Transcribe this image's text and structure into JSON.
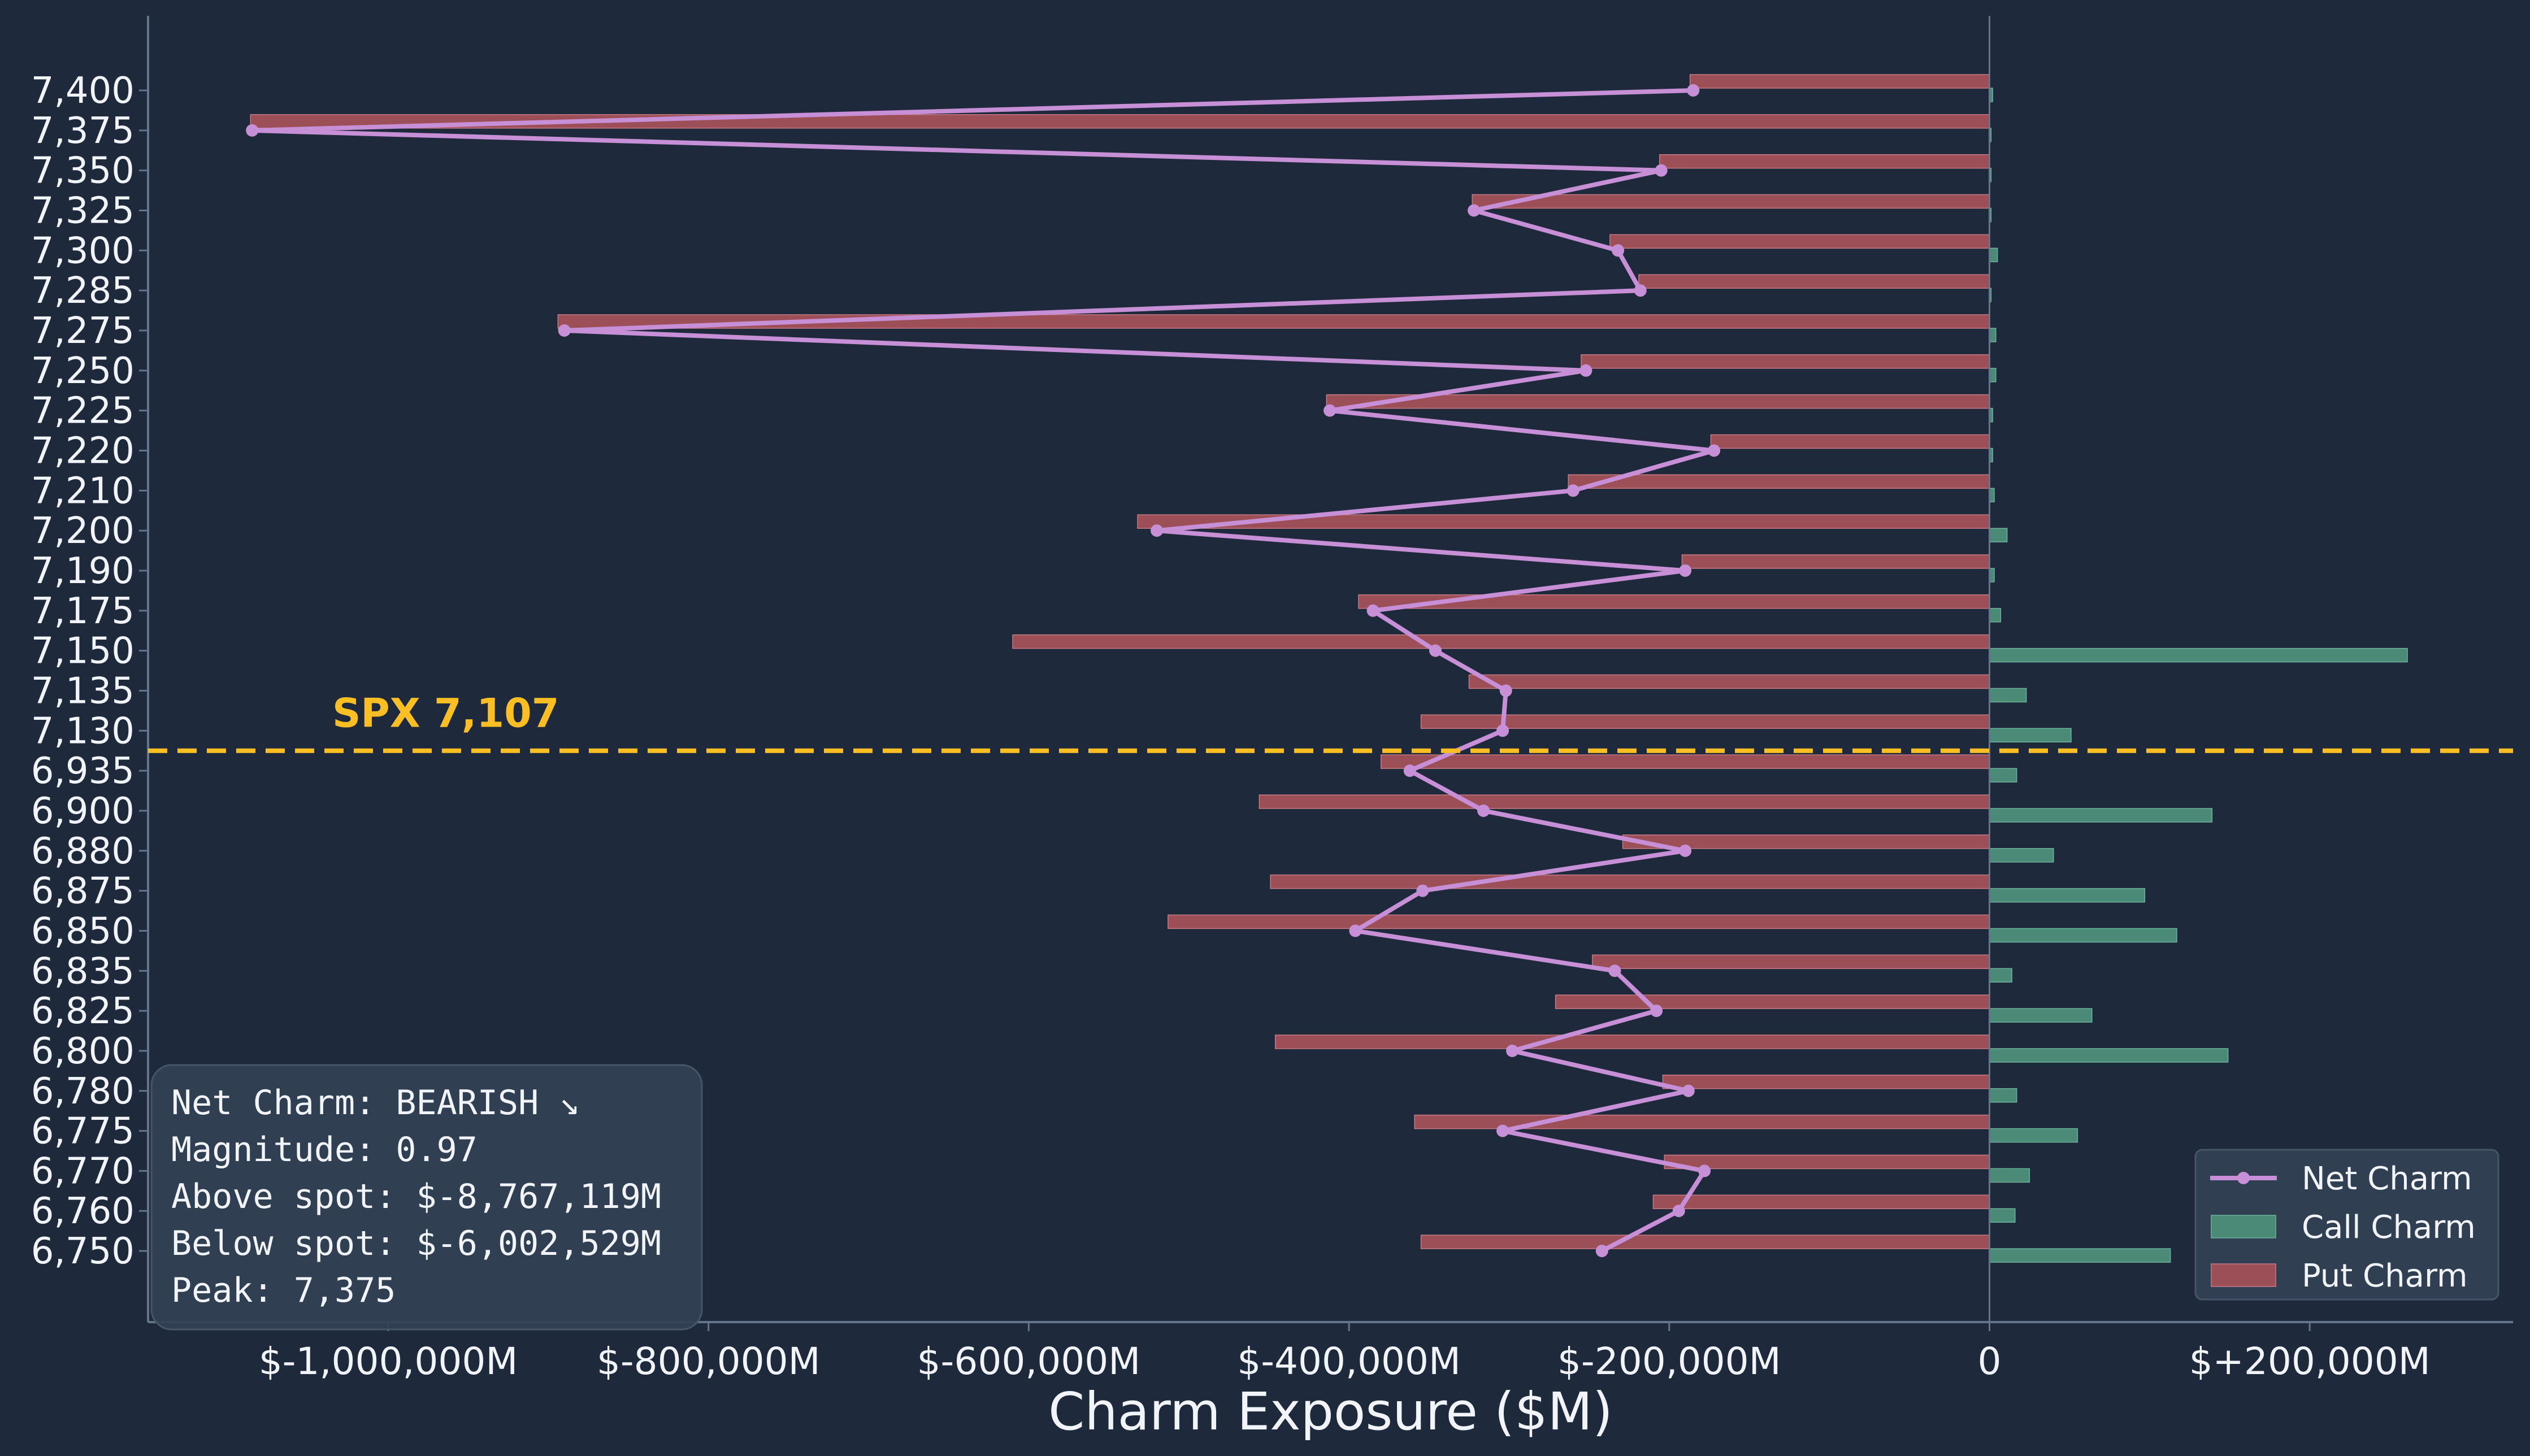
{
  "chart_data": {
    "type": "bar",
    "orientation": "horizontal",
    "title": "",
    "xlabel": "Charm Exposure ($M)",
    "ylabel": "",
    "xlim": [
      -1150000,
      327000
    ],
    "x_ticks": [
      {
        "value": -1000000,
        "label": "$-1,000,000M"
      },
      {
        "value": -800000,
        "label": "$-800,000M"
      },
      {
        "value": -600000,
        "label": "$-600,000M"
      },
      {
        "value": -400000,
        "label": "$-400,000M"
      },
      {
        "value": -200000,
        "label": "$-200,000M"
      },
      {
        "value": 0,
        "label": "0"
      },
      {
        "value": 200000,
        "label": "$+200,000M"
      }
    ],
    "grid": false,
    "legend_position": "bottom-right",
    "colors": {
      "background": "#1e293b",
      "net": "#c68fd6",
      "call": "#4a8a76",
      "put": "#9c4f56",
      "spot": "#fbbf24",
      "axis": "#64748b"
    },
    "categories": [
      "7,400",
      "7,375",
      "7,350",
      "7,325",
      "7,300",
      "7,285",
      "7,275",
      "7,250",
      "7,225",
      "7,220",
      "7,210",
      "7,200",
      "7,190",
      "7,175",
      "7,150",
      "7,135",
      "7,130",
      "6,935",
      "6,900",
      "6,880",
      "6,875",
      "6,850",
      "6,835",
      "6,825",
      "6,800",
      "6,780",
      "6,775",
      "6,770",
      "6,760",
      "6,750"
    ],
    "series": [
      {
        "name": "Net Charm",
        "kind": "line",
        "values": [
          -185000,
          -1085000,
          -205000,
          -322000,
          -232000,
          -218000,
          -890000,
          -252000,
          -412000,
          -172000,
          -260000,
          -520000,
          -190000,
          -385000,
          -346000,
          -302000,
          -304000,
          -362000,
          -316000,
          -190000,
          -354000,
          -396000,
          -234000,
          -208000,
          -298000,
          -188000,
          -304000,
          -178000,
          -194000,
          -242000
        ]
      },
      {
        "name": "Call Charm",
        "kind": "bar",
        "values": [
          2000,
          1000,
          1000,
          1000,
          5000,
          1000,
          4000,
          4000,
          2000,
          2000,
          3000,
          11000,
          3000,
          7000,
          261000,
          23000,
          51000,
          17000,
          139000,
          40000,
          97000,
          117000,
          14000,
          64000,
          149000,
          17000,
          55000,
          25000,
          16000,
          113000
        ]
      },
      {
        "name": "Put Charm",
        "kind": "bar",
        "values": [
          -187000,
          -1086000,
          -206000,
          -323000,
          -237000,
          -219000,
          -894000,
          -255000,
          -414000,
          -174000,
          -263000,
          -532000,
          -192000,
          -394000,
          -610000,
          -325000,
          -355000,
          -380000,
          -456000,
          -229000,
          -449000,
          -513000,
          -248000,
          -271000,
          -446000,
          -204000,
          -359000,
          -203000,
          -210000,
          -355000
        ]
      }
    ],
    "spot": {
      "label": "SPX 7,107",
      "between": [
        "7,130",
        "6,935"
      ]
    },
    "info_box": {
      "lines": [
        "Net Charm: BEARISH ↘",
        "Magnitude: 0.97",
        "Above spot: $-8,767,119M",
        "Below spot: $-6,002,529M",
        "Peak: 7,375"
      ]
    }
  }
}
